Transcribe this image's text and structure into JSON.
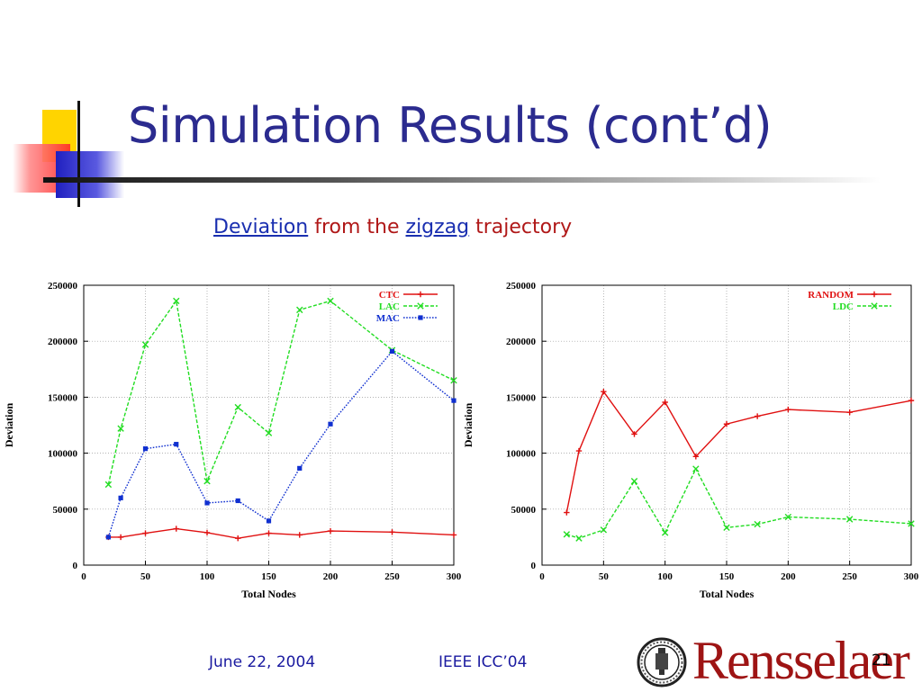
{
  "slide": {
    "title": "Simulation Results (cont’d)",
    "subtitle_parts": [
      "Deviation",
      " from the ",
      "zigzag",
      " trajectory"
    ],
    "footer_date": "June 22, 2004",
    "footer_conference": "IEEE ICC’04",
    "page_number": "21",
    "logo_text": "Rensselaer",
    "title_color": "#2b2b8f",
    "subtitle_color": "#b01818",
    "link_color": "#1a2fb0"
  },
  "chart_data": [
    {
      "type": "line",
      "xlabel": "Total Nodes",
      "ylabel": "Deviation",
      "xlim": [
        0,
        300
      ],
      "ylim": [
        0,
        250000
      ],
      "xticks": [
        "0",
        "50",
        "100",
        "150",
        "200",
        "250",
        "300"
      ],
      "yticks": [
        "0",
        "50000",
        "100000",
        "150000",
        "200000",
        "250000"
      ],
      "grid": true,
      "legend_position": "top-right",
      "series": [
        {
          "name": "CTC",
          "color": "#e01010",
          "marker": "plus",
          "dash": "solid",
          "x": [
            20,
            30,
            50,
            75,
            100,
            125,
            150,
            175,
            200,
            250,
            300
          ],
          "y": [
            25000,
            25000,
            28500,
            32500,
            29000,
            24000,
            28500,
            27000,
            30500,
            29500,
            27000
          ]
        },
        {
          "name": "LAC",
          "color": "#22dd22",
          "marker": "x",
          "dash": "dashed",
          "x": [
            20,
            30,
            50,
            75,
            100,
            125,
            150,
            175,
            200,
            250,
            300
          ],
          "y": [
            72000,
            122000,
            197000,
            236000,
            75000,
            141000,
            118000,
            228000,
            236000,
            192000,
            165000
          ]
        },
        {
          "name": "MAC",
          "color": "#1030d0",
          "marker": "square",
          "dash": "dotted",
          "x": [
            20,
            30,
            50,
            75,
            100,
            125,
            150,
            175,
            200,
            250,
            300
          ],
          "y": [
            25000,
            60000,
            104000,
            108000,
            55500,
            57500,
            39500,
            86500,
            126000,
            191000,
            147000
          ]
        }
      ]
    },
    {
      "type": "line",
      "xlabel": "Total Nodes",
      "ylabel": "Deviation",
      "xlim": [
        0,
        300
      ],
      "ylim": [
        0,
        250000
      ],
      "xticks": [
        "0",
        "50",
        "100",
        "150",
        "200",
        "250",
        "300"
      ],
      "yticks": [
        "0",
        "50000",
        "100000",
        "150000",
        "200000",
        "250000"
      ],
      "grid": true,
      "legend_position": "top-right",
      "series": [
        {
          "name": "RANDOM",
          "color": "#e01010",
          "marker": "plus",
          "dash": "solid",
          "x": [
            20,
            30,
            50,
            75,
            100,
            125,
            150,
            175,
            200,
            250,
            300
          ],
          "y": [
            47000,
            102000,
            155000,
            117000,
            145500,
            97000,
            126000,
            133000,
            139000,
            136500,
            147000
          ]
        },
        {
          "name": "LDC",
          "color": "#22dd22",
          "marker": "x",
          "dash": "dashed",
          "x": [
            20,
            30,
            50,
            75,
            100,
            125,
            150,
            175,
            200,
            250,
            300
          ],
          "y": [
            27500,
            24000,
            31500,
            75000,
            29000,
            86000,
            33500,
            36500,
            43000,
            41000,
            37000
          ]
        }
      ]
    }
  ]
}
